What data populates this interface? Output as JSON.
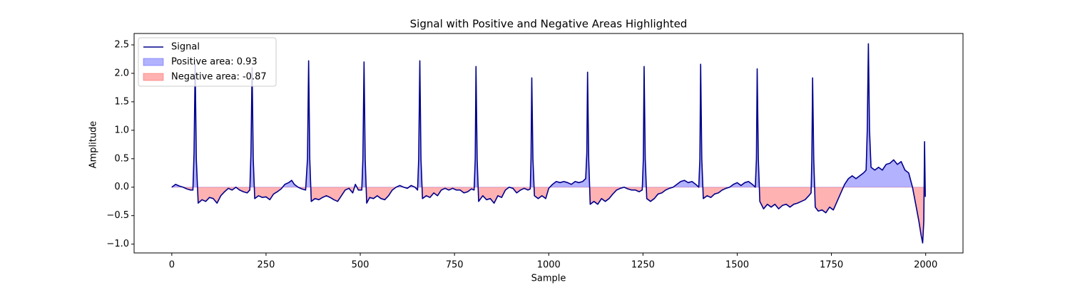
{
  "chart_data": {
    "type": "line",
    "title": "Signal with Positive and Negative Areas Highlighted",
    "xlabel": "Sample",
    "ylabel": "Amplitude",
    "x": [
      0,
      10,
      20,
      30,
      40,
      50,
      56,
      59,
      62,
      65,
      70,
      80,
      90,
      100,
      110,
      120,
      130,
      140,
      150,
      160,
      170,
      180,
      190,
      200,
      207,
      210,
      213,
      216,
      220,
      230,
      240,
      250,
      260,
      270,
      280,
      290,
      300,
      310,
      318,
      325,
      335,
      345,
      355,
      360,
      363,
      366,
      370,
      380,
      390,
      400,
      410,
      420,
      430,
      440,
      450,
      460,
      470,
      480,
      487,
      495,
      504,
      507,
      510,
      513,
      517,
      525,
      535,
      545,
      555,
      565,
      575,
      585,
      595,
      605,
      615,
      625,
      635,
      645,
      652,
      655,
      658,
      661,
      665,
      675,
      685,
      695,
      705,
      715,
      725,
      735,
      745,
      755,
      765,
      775,
      785,
      795,
      802,
      805,
      807,
      810,
      814,
      825,
      835,
      845,
      855,
      865,
      875,
      885,
      895,
      905,
      915,
      925,
      935,
      945,
      951,
      953,
      955,
      958,
      962,
      972,
      982,
      992,
      1000,
      1010,
      1020,
      1030,
      1040,
      1050,
      1060,
      1070,
      1080,
      1090,
      1098,
      1101,
      1103,
      1106,
      1110,
      1120,
      1130,
      1140,
      1150,
      1160,
      1170,
      1180,
      1190,
      1200,
      1210,
      1220,
      1230,
      1240,
      1248,
      1251,
      1253,
      1256,
      1260,
      1270,
      1280,
      1290,
      1300,
      1310,
      1320,
      1330,
      1340,
      1350,
      1360,
      1370,
      1380,
      1390,
      1398,
      1401,
      1403,
      1406,
      1410,
      1420,
      1430,
      1440,
      1450,
      1460,
      1470,
      1480,
      1490,
      1500,
      1510,
      1520,
      1530,
      1540,
      1548,
      1551,
      1553,
      1556,
      1560,
      1570,
      1580,
      1590,
      1600,
      1610,
      1620,
      1630,
      1640,
      1650,
      1660,
      1670,
      1680,
      1690,
      1696,
      1698,
      1700,
      1703,
      1707,
      1715,
      1725,
      1735,
      1745,
      1755,
      1765,
      1775,
      1785,
      1795,
      1805,
      1815,
      1825,
      1835,
      1842,
      1845,
      1848,
      1851,
      1855,
      1865,
      1875,
      1885,
      1895,
      1905,
      1915,
      1925,
      1935,
      1945,
      1955,
      1965,
      1975,
      1982,
      1988,
      1992,
      1995,
      1997,
      1999
    ],
    "series": [
      {
        "name": "Signal",
        "color": "#00008b",
        "values": [
          0,
          0.05,
          0.02,
          0,
          -0.03,
          -0.05,
          -0.05,
          0.6,
          2.15,
          0.5,
          -0.28,
          -0.22,
          -0.25,
          -0.18,
          -0.2,
          -0.28,
          -0.15,
          -0.08,
          -0.02,
          -0.05,
          0,
          -0.05,
          -0.08,
          -0.1,
          -0.05,
          0.6,
          2.1,
          0.5,
          -0.2,
          -0.15,
          -0.18,
          -0.17,
          -0.22,
          -0.12,
          -0.08,
          -0.03,
          0.05,
          0.08,
          0.12,
          0.05,
          0,
          -0.03,
          -0.05,
          0.5,
          2.22,
          0.5,
          -0.25,
          -0.2,
          -0.22,
          -0.18,
          -0.15,
          -0.18,
          -0.22,
          -0.25,
          -0.15,
          -0.05,
          -0.02,
          -0.1,
          0.05,
          -0.05,
          -0.05,
          0.5,
          2.2,
          0.5,
          -0.28,
          -0.18,
          -0.2,
          -0.15,
          -0.2,
          -0.22,
          -0.15,
          -0.05,
          0,
          0.03,
          0,
          -0.02,
          0.03,
          0,
          -0.05,
          0.5,
          2.22,
          0.5,
          -0.2,
          -0.15,
          -0.18,
          -0.1,
          -0.15,
          -0.05,
          -0.02,
          -0.05,
          -0.02,
          -0.05,
          -0.05,
          -0.1,
          -0.08,
          -0.03,
          -0.05,
          0.5,
          2.12,
          0.5,
          -0.25,
          -0.15,
          -0.22,
          -0.2,
          -0.28,
          -0.15,
          -0.18,
          -0.05,
          0,
          -0.02,
          -0.1,
          -0.05,
          -0.02,
          -0.05,
          -0.03,
          0.5,
          1.92,
          0.5,
          -0.15,
          -0.2,
          -0.15,
          -0.2,
          -0.02,
          0.05,
          0.1,
          0.08,
          0.1,
          0.08,
          0.05,
          0.1,
          0.08,
          0.1,
          0.15,
          0.6,
          2.02,
          0.5,
          -0.3,
          -0.25,
          -0.3,
          -0.2,
          -0.25,
          -0.2,
          -0.12,
          -0.05,
          -0.02,
          0,
          -0.03,
          -0.05,
          -0.05,
          -0.08,
          -0.05,
          0.5,
          2.12,
          0.5,
          -0.2,
          -0.25,
          -0.2,
          -0.12,
          -0.1,
          -0.05,
          -0.02,
          0,
          0.05,
          0.1,
          0.12,
          0.08,
          0.1,
          0.05,
          0,
          0.5,
          2.16,
          0.5,
          -0.2,
          -0.15,
          -0.18,
          -0.12,
          -0.1,
          -0.05,
          -0.02,
          0,
          0.05,
          0.08,
          0.03,
          0.08,
          0.1,
          0.05,
          0,
          0.5,
          2.08,
          0.5,
          -0.25,
          -0.38,
          -0.3,
          -0.35,
          -0.3,
          -0.38,
          -0.32,
          -0.3,
          -0.35,
          -0.3,
          -0.28,
          -0.25,
          -0.22,
          -0.15,
          -0.1,
          0.5,
          1.92,
          0.5,
          -0.35,
          -0.42,
          -0.4,
          -0.45,
          -0.35,
          -0.4,
          -0.25,
          -0.1,
          0.05,
          0.15,
          0.2,
          0.15,
          0.2,
          0.25,
          0.3,
          1.0,
          2.52,
          1.0,
          0.35,
          0.3,
          0.35,
          0.3,
          0.4,
          0.42,
          0.48,
          0.4,
          0.45,
          0.3,
          0.25,
          0,
          -0.35,
          -0.6,
          -0.85,
          -0.98,
          -0.6,
          0.8,
          -0.17
        ]
      }
    ],
    "areas": [
      {
        "name": "Positive area: 0.93",
        "color": "#0000ff",
        "side": "positive"
      },
      {
        "name": "Negative area: -0.87",
        "color": "#ff0000",
        "side": "negative"
      }
    ],
    "xlim": [
      -100,
      2099
    ],
    "ylim": [
      -1.155,
      2.7
    ],
    "xticks": [
      0,
      250,
      500,
      750,
      1000,
      1250,
      1500,
      1750,
      2000
    ],
    "yticks": [
      {
        "value": -1.0,
        "label": "−1.0"
      },
      {
        "value": -0.5,
        "label": "−0.5"
      },
      {
        "value": 0,
        "label": "0.0"
      },
      0.5,
      {
        "value": 1,
        "label": "1.0"
      },
      1.5,
      {
        "value": 2,
        "label": "2.0"
      },
      2.5
    ],
    "legend": "upper left"
  }
}
